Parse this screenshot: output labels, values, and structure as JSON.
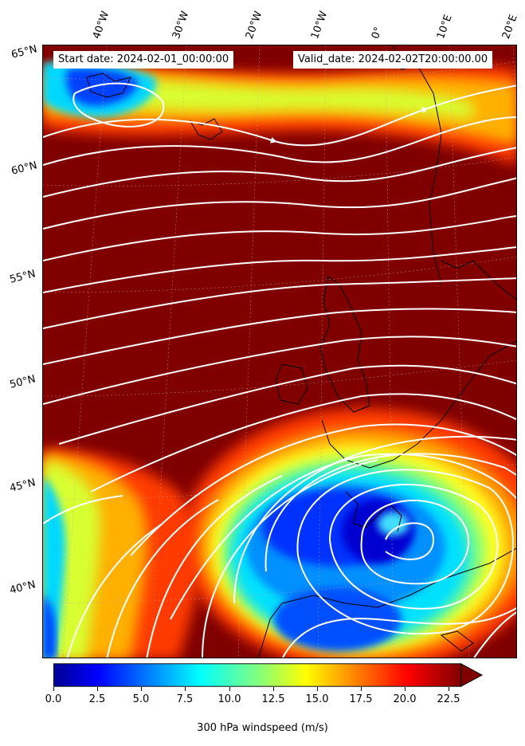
{
  "header": {
    "start_date": "Start date: 2024-02-01_00:00:00",
    "valid_date": "Valid_date: 2024-02-02T20:00:00.00"
  },
  "lon_labels": [
    "40°W",
    "30°W",
    "20°W",
    "10°W",
    "0°",
    "10°E",
    "20°E"
  ],
  "lat_labels": [
    "65°N",
    "60°N",
    "55°N",
    "50°N",
    "45°N",
    "40°N"
  ],
  "colorbar": {
    "label": "300 hPa windspeed (m/s)",
    "ticks": [
      "0.0",
      "2.5",
      "5.0",
      "7.5",
      "10.0",
      "12.5",
      "15.0",
      "17.5",
      "20.0",
      "22.5"
    ],
    "colormap": "jet",
    "extend": "max"
  },
  "colors": {
    "background_max": "#800000",
    "low": "#0000ff",
    "mid": "#00ffff",
    "high": "#ffff00",
    "streamlines": "#ffffff",
    "coastlines": "#000000"
  }
}
